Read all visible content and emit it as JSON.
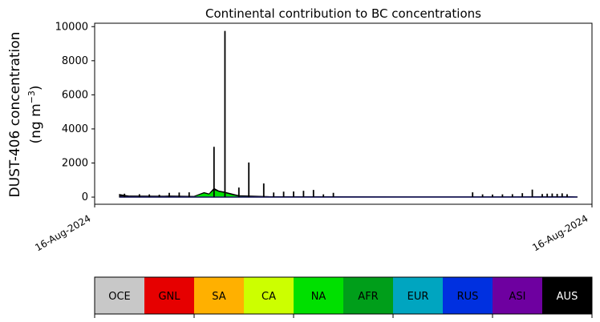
{
  "chart_data": {
    "type": "area",
    "title": "Continental contribution to BC concentrations",
    "ylabel_main": "DUST-406 concentration",
    "ylabel_unit": "(ng m",
    "ylabel_unit_exp": "−3",
    "ylabel_unit_close": ")",
    "ylim": [
      -420,
      10200
    ],
    "yticks": [
      0,
      2000,
      4000,
      6000,
      8000,
      10000
    ],
    "ytick_labels": [
      "0",
      "2000",
      "4000",
      "6000",
      "8000",
      "10000"
    ],
    "xtick_labels": [
      "16-Aug-2024",
      "16-Aug-2024"
    ],
    "xlim": [
      0,
      100
    ],
    "grid": false,
    "series_total": {
      "x": [
        5,
        6,
        7,
        14,
        15,
        20,
        22,
        23,
        24,
        25,
        26,
        28,
        29,
        35,
        46,
        75,
        90,
        95,
        96,
        97
      ],
      "values": [
        150,
        100,
        60,
        50,
        60,
        40,
        260,
        180,
        500,
        350,
        300,
        150,
        80,
        30,
        20,
        15,
        20,
        30,
        20,
        10
      ]
    },
    "series_green": {
      "x": [
        5,
        14,
        20,
        22,
        23,
        24,
        25,
        26,
        28,
        29,
        35,
        46,
        90,
        97
      ],
      "values": [
        10,
        10,
        20,
        220,
        150,
        420,
        300,
        250,
        100,
        40,
        15,
        5,
        5,
        5
      ]
    },
    "spikes": {
      "x": [
        6,
        9,
        11,
        13,
        15,
        17,
        19,
        24,
        26.2,
        29,
        31,
        34,
        36,
        38,
        40,
        42,
        44,
        46,
        48,
        76,
        78,
        80,
        82,
        84,
        86,
        88,
        90,
        91,
        92,
        93,
        94,
        95
      ],
      "values": [
        200,
        170,
        160,
        140,
        250,
        270,
        280,
        2950,
        9750,
        560,
        2030,
        800,
        270,
        320,
        330,
        370,
        420,
        160,
        250,
        280,
        160,
        150,
        160,
        170,
        230,
        440,
        180,
        200,
        210,
        190,
        220,
        170
      ]
    },
    "colorbar": {
      "labels": [
        "OCE",
        "GNL",
        "SA",
        "CA",
        "NA",
        "AFR",
        "EUR",
        "RUS",
        "ASI",
        "AUS"
      ],
      "colors": [
        "#c8c8c8",
        "#e60000",
        "#ffb000",
        "#ccff00",
        "#00e000",
        "#009e1a",
        "#00a5c0",
        "#0030e0",
        "#6e00a0",
        "#000000"
      ],
      "text_colors": [
        "#000000",
        "#000000",
        "#000000",
        "#000000",
        "#000000",
        "#000000",
        "#000000",
        "#000000",
        "#000000",
        "#ffffff"
      ]
    }
  }
}
